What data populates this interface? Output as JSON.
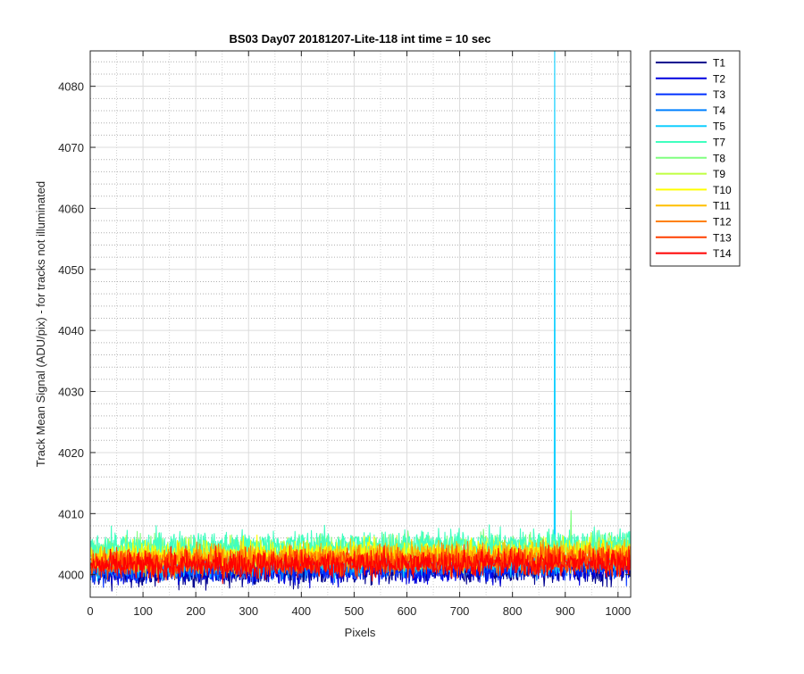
{
  "chart_data": {
    "type": "line",
    "title": "BS03 Day07 20181207-Lite-118 int time = 10 sec",
    "xlabel": "Pixels",
    "ylabel": "Track Mean Signal (ADU/pix) - for tracks not illuminated",
    "xlim": [
      0,
      1024
    ],
    "ylim": [
      3996.3,
      4085.8
    ],
    "xticks": [
      0,
      100,
      200,
      300,
      400,
      500,
      600,
      700,
      800,
      900,
      1000
    ],
    "yticks": [
      4000,
      4010,
      4020,
      4030,
      4040,
      4050,
      4060,
      4070,
      4080
    ],
    "grid": true,
    "minor_grid": true,
    "legend_position": "outside-right-top",
    "series": [
      {
        "name": "T1",
        "color": "#00008F",
        "level": 4000.2,
        "noise": 1.5
      },
      {
        "name": "T2",
        "color": "#0000DF",
        "level": 4000.5,
        "noise": 1.5
      },
      {
        "name": "T3",
        "color": "#0030FF",
        "level": 4000.9,
        "noise": 1.5
      },
      {
        "name": "T4",
        "color": "#0080FF",
        "level": 4001.4,
        "noise": 1.5
      },
      {
        "name": "T5",
        "color": "#10CFFF",
        "level": 4002.0,
        "noise": 1.5,
        "spike": {
          "x": 880,
          "y": 4085.8
        }
      },
      {
        "name": "T7",
        "color": "#40FFBF",
        "level": 4004.6,
        "noise": 1.6
      },
      {
        "name": "T8",
        "color": "#80FF80",
        "level": 4004.0,
        "noise": 1.5,
        "spike": {
          "x": 911,
          "y": 4010.5
        }
      },
      {
        "name": "T9",
        "color": "#BFFF40",
        "level": 4003.6,
        "noise": 1.5
      },
      {
        "name": "T10",
        "color": "#FFFF00",
        "level": 4003.0,
        "noise": 1.5
      },
      {
        "name": "T11",
        "color": "#FFBF00",
        "level": 4002.6,
        "noise": 1.5
      },
      {
        "name": "T12",
        "color": "#FF8000",
        "level": 4002.2,
        "noise": 1.5
      },
      {
        "name": "T13",
        "color": "#FF4000",
        "level": 4001.8,
        "noise": 1.5
      },
      {
        "name": "T14",
        "color": "#FF0000",
        "level": 4001.4,
        "noise": 1.5
      }
    ]
  }
}
